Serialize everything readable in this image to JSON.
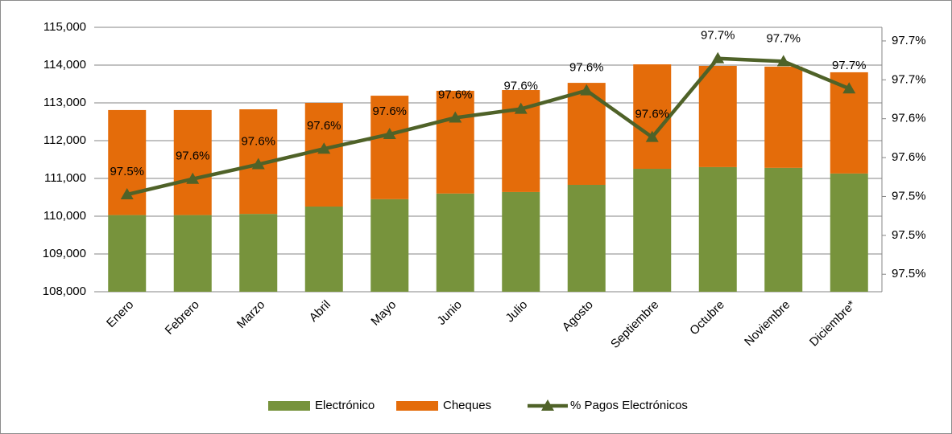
{
  "chart_data": {
    "type": "bar",
    "categories": [
      "Enero",
      "Febrero",
      "Marzo",
      "Abril",
      "Mayo",
      "Junio",
      "Julio",
      "Agosto",
      "Septiembre",
      "Octubre",
      "Noviembre",
      "Diciembre*"
    ],
    "stacked": true,
    "grid": true,
    "legend": "bottom",
    "series": [
      {
        "name": "Electrónico",
        "type": "bar",
        "color": "#77933c",
        "values": [
          110030,
          110030,
          110060,
          110255,
          110450,
          110600,
          110640,
          110830,
          111255,
          111300,
          111280,
          111130
        ]
      },
      {
        "name": "Cheques",
        "type": "bar",
        "color": "#e46c0a",
        "values": [
          2780,
          2780,
          2770,
          2745,
          2740,
          2720,
          2700,
          2700,
          2765,
          2680,
          2680,
          2680
        ]
      },
      {
        "name": "% Pagos Electrónicos",
        "type": "line",
        "axis": "y2",
        "color": "#4f6228",
        "values": [
          97.542,
          97.558,
          97.573,
          97.589,
          97.604,
          97.621,
          97.63,
          97.649,
          97.601,
          97.682,
          97.679,
          97.651
        ],
        "value_labels": [
          "97.5%",
          "97.6%",
          "97.6%",
          "97.6%",
          "97.6%",
          "97.6%",
          "97.6%",
          "97.6%",
          "97.6%",
          "97.7%",
          "97.7%",
          "97.7%"
        ]
      }
    ],
    "ylim": [
      108000,
      115000
    ],
    "yticks": [
      {
        "value": 108000,
        "label": "108,000"
      },
      {
        "value": 109000,
        "label": "109,000"
      },
      {
        "value": 110000,
        "label": "110,000"
      },
      {
        "value": 111000,
        "label": "111,000"
      },
      {
        "value": 112000,
        "label": "112,000"
      },
      {
        "value": 113000,
        "label": "113,000"
      },
      {
        "value": 114000,
        "label": "114,000"
      },
      {
        "value": 115000,
        "label": "115,000"
      }
    ],
    "y2lim": [
      97.442,
      97.714
    ],
    "y2ticks": [
      {
        "value": 97.46,
        "label": "97.5%"
      },
      {
        "value": 97.5,
        "label": "97.5%"
      },
      {
        "value": 97.54,
        "label": "97.5%"
      },
      {
        "value": 97.58,
        "label": "97.6%"
      },
      {
        "value": 97.62,
        "label": "97.6%"
      },
      {
        "value": 97.66,
        "label": "97.7%"
      },
      {
        "value": 97.7,
        "label": "97.7%"
      }
    ]
  }
}
